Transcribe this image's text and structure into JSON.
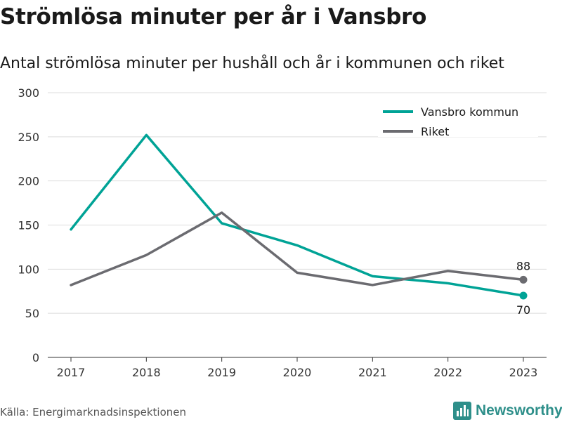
{
  "chart_data": {
    "type": "line",
    "title": "Strömlösa minuter per år i Vansbro",
    "subtitle": "Antal strömlösa minuter per hushåll och år i kommunen och riket",
    "x": [
      "2017",
      "2018",
      "2019",
      "2020",
      "2021",
      "2022",
      "2023"
    ],
    "ylim": [
      0,
      300
    ],
    "yticks": [
      0,
      50,
      100,
      150,
      200,
      250,
      300
    ],
    "grid": true,
    "legend_position": "top-right",
    "series": [
      {
        "name": "Vansbro kommun",
        "color": "#00a396",
        "values": [
          145,
          252,
          152,
          127,
          92,
          84,
          70
        ],
        "end_label": "70"
      },
      {
        "name": "Riket",
        "color": "#6b6b70",
        "values": [
          82,
          116,
          164,
          96,
          82,
          98,
          88
        ],
        "end_label": "88"
      }
    ]
  },
  "footer": {
    "source": "Källa: Energimarknadsinspektionen",
    "brand": "Newsworthy",
    "brand_icon": "newsworthy-logo-icon",
    "brand_color": "#2e8f8a"
  }
}
